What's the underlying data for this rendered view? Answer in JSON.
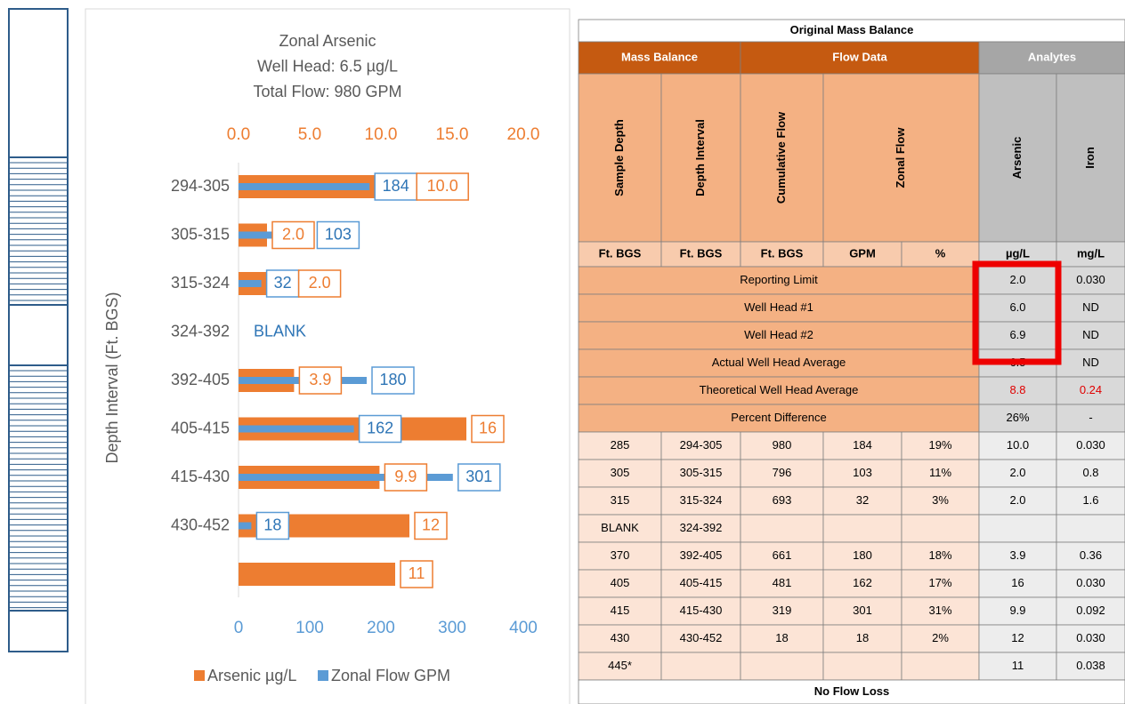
{
  "chart_data": {
    "type": "bar",
    "orientation": "horizontal",
    "title": [
      "Zonal Arsenic",
      "Well Head: 6.5 µg/L",
      "Total Flow: 980 GPM"
    ],
    "ylabel": "Depth Interval (Ft. BGS)",
    "categories": [
      "294-305",
      "305-315",
      "315-324",
      "324-392",
      "392-405",
      "405-415",
      "415-430",
      "430-452",
      null
    ],
    "series": [
      {
        "name": "Arsenic µg/L",
        "color": "#ed7d31",
        "axis": "x2",
        "values": [
          10.0,
          2.0,
          2.0,
          null,
          3.9,
          16,
          9.9,
          12,
          11
        ],
        "value_labels": [
          "10.0",
          "2.0",
          "2.0",
          null,
          "3.9",
          "16",
          "9.9",
          "12",
          "11"
        ]
      },
      {
        "name": "Zonal Flow GPM",
        "color": "#5b9bd5",
        "values": [
          184,
          103,
          32,
          null,
          180,
          162,
          301,
          18,
          null
        ]
      }
    ],
    "annotations": [
      "BLANK"
    ],
    "xlim": [
      0,
      400
    ],
    "xticks": [
      0,
      100,
      200,
      300,
      400
    ],
    "x2lim": [
      0,
      20
    ],
    "x2ticks": [
      {
        "value": 0,
        "label": "0.0"
      },
      {
        "value": 5,
        "label": "5.0"
      },
      {
        "value": 10,
        "label": "10.0"
      },
      {
        "value": 15,
        "label": "15.0"
      },
      {
        "value": 20,
        "label": "20.0"
      }
    ],
    "legend": "bottom",
    "grid": false
  },
  "table": {
    "title": "Original Mass Balance",
    "groups": [
      "Mass Balance",
      "Flow Data",
      "Analytes"
    ],
    "columns": [
      "Sample Depth",
      "Depth Interval",
      "Cumulative Flow",
      "Zonal Flow",
      "Arsenic",
      "Iron"
    ],
    "units": [
      "Ft. BGS",
      "Ft. BGS",
      "Ft. BGS",
      "GPM",
      "%",
      "µg/L",
      "mg/L"
    ],
    "summary": [
      [
        "Reporting Limit",
        "2.0",
        "0.030"
      ],
      [
        "Well Head #1",
        "6.0",
        "ND"
      ],
      [
        "Well Head #2",
        "6.9",
        "ND"
      ],
      [
        "Actual Well Head Average",
        "6.5",
        "ND"
      ],
      [
        "Theoretical Well Head Average",
        "8.8",
        "0.24"
      ],
      [
        "Percent Difference",
        "26%",
        "-"
      ]
    ],
    "rows": [
      [
        "285",
        "294-305",
        "980",
        "184",
        "19%",
        "10.0",
        "0.030"
      ],
      [
        "305",
        "305-315",
        "796",
        "103",
        "11%",
        "2.0",
        "0.8"
      ],
      [
        "315",
        "315-324",
        "693",
        "32",
        "3%",
        "2.0",
        "1.6"
      ],
      [
        "BLANK",
        "324-392",
        null,
        null,
        null,
        null,
        null
      ],
      [
        "370",
        "392-405",
        "661",
        "180",
        "18%",
        "3.9",
        "0.36"
      ],
      [
        "405",
        "405-415",
        "481",
        "162",
        "17%",
        "16",
        "0.030"
      ],
      [
        "415",
        "415-430",
        "319",
        "301",
        "31%",
        "9.9",
        "0.092"
      ],
      [
        "430",
        "430-452",
        "18",
        "18",
        "2%",
        "12",
        "0.030"
      ],
      [
        "445*",
        null,
        null,
        null,
        null,
        "11",
        "0.038"
      ]
    ],
    "footer": "No Flow Loss"
  }
}
